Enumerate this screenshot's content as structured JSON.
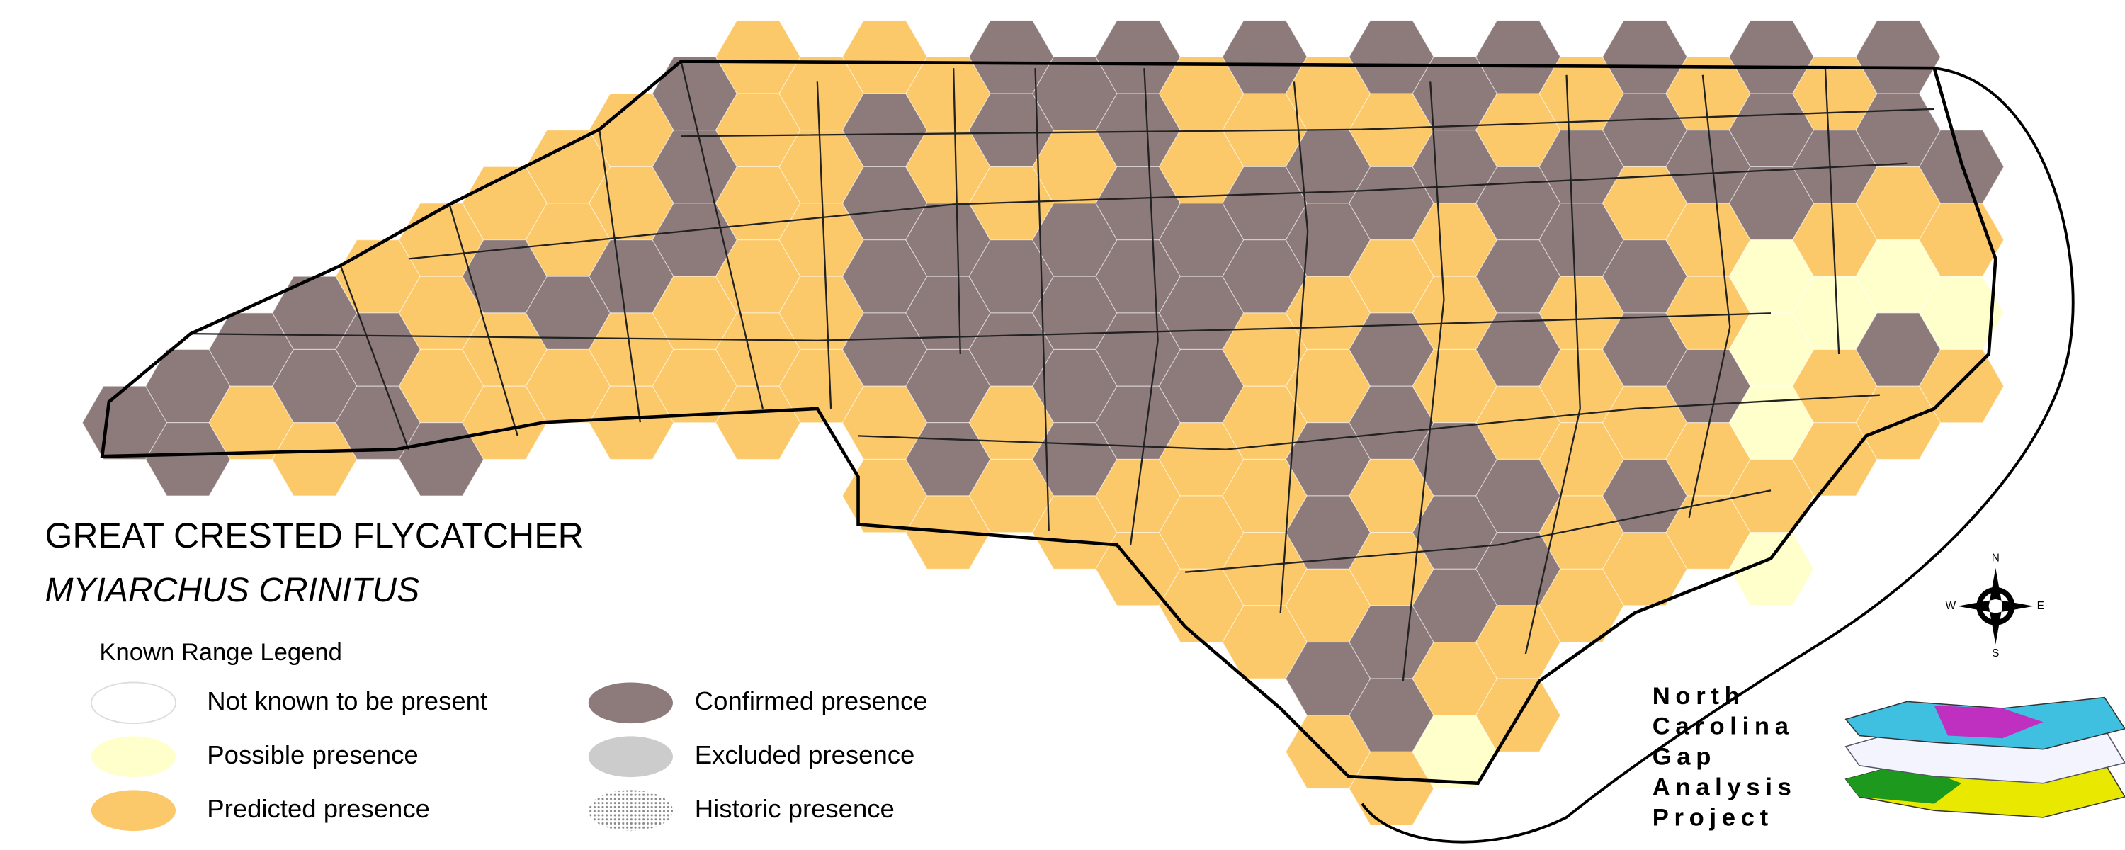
{
  "title": "GREAT CRESTED FLYCATCHER",
  "subtitle": "MYIARCHUS CRINITUS",
  "legend": {
    "title": "Known Range Legend",
    "items": [
      {
        "label": "Not known to be present",
        "color": "#ffffff"
      },
      {
        "label": "Possible presence",
        "color": "#ffffcc"
      },
      {
        "label": "Predicted presence",
        "color": "#fcc96a"
      },
      {
        "label": "Confirmed presence",
        "color": "#8d7b7c"
      },
      {
        "label": "Excluded presence",
        "color": "#cccccc"
      },
      {
        "label": "Historic presence",
        "color": "#8a8a8a"
      }
    ]
  },
  "compass": {
    "north": "N",
    "south": "S",
    "east": "E",
    "west": "W"
  },
  "logo": {
    "lines": [
      "North",
      "Carolina",
      "Gap",
      "Analysis",
      "Project"
    ]
  }
}
